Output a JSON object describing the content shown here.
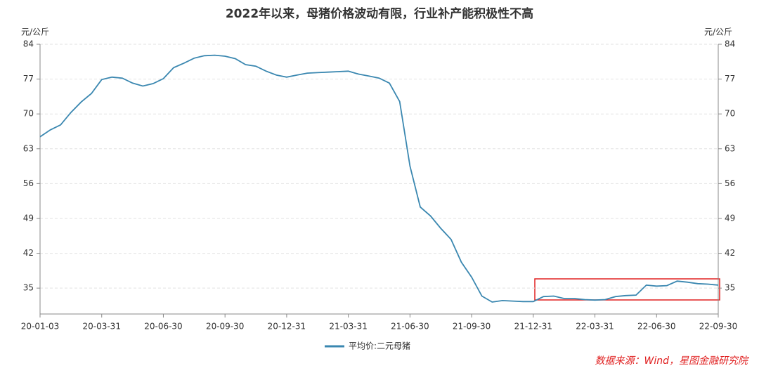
{
  "chart_data": {
    "type": "line",
    "title": "2022年以来，母猪价格波动有限，行业补产能积极性不高",
    "ylabel": "元/公斤",
    "y2label": "元/公斤",
    "source": "数据来源：Wind，星图金融研究院",
    "categories": [
      "20-01-03",
      null,
      null,
      null,
      null,
      null,
      "20-03-31",
      null,
      null,
      null,
      null,
      null,
      "20-06-30",
      null,
      null,
      null,
      null,
      null,
      "20-09-30",
      null,
      null,
      null,
      null,
      null,
      "20-12-31",
      null,
      null,
      null,
      null,
      null,
      "21-03-31",
      null,
      null,
      null,
      null,
      null,
      "21-06-30",
      null,
      null,
      null,
      null,
      null,
      "21-09-30",
      null,
      null,
      null,
      null,
      null,
      "21-12-31",
      null,
      null,
      null,
      null,
      null,
      "22-03-31",
      null,
      null,
      null,
      null,
      null,
      "22-06-30",
      null,
      null,
      null,
      null,
      null,
      "22-09-30"
    ],
    "series": [
      {
        "name": "平均价:二元母猪",
        "color": "#3a87b0",
        "values": [
          65.4,
          66.8,
          67.8,
          70.3,
          72.4,
          74.1,
          76.9,
          77.4,
          77.2,
          76.2,
          75.6,
          76.1,
          77.1,
          79.3,
          80.2,
          81.2,
          81.7,
          81.8,
          81.6,
          81.1,
          79.9,
          79.6,
          78.6,
          77.8,
          77.4,
          77.8,
          78.2,
          78.3,
          78.4,
          78.5,
          78.6,
          78.0,
          77.6,
          77.2,
          76.2,
          72.5,
          59.5,
          51.3,
          49.5,
          47.0,
          44.8,
          40.2,
          37.2,
          33.4,
          32.2,
          32.5,
          32.4,
          32.3,
          32.3,
          33.3,
          33.4,
          32.9,
          32.9,
          32.7,
          32.6,
          32.7,
          33.3,
          33.5,
          33.6,
          35.6,
          35.4,
          35.5,
          36.4,
          36.2,
          35.9,
          35.8,
          35.6
        ]
      }
    ],
    "ylim": [
      29.8,
      84
    ],
    "yticks": [
      35,
      42,
      49,
      56,
      63,
      70,
      77,
      84
    ],
    "grid": true
  }
}
